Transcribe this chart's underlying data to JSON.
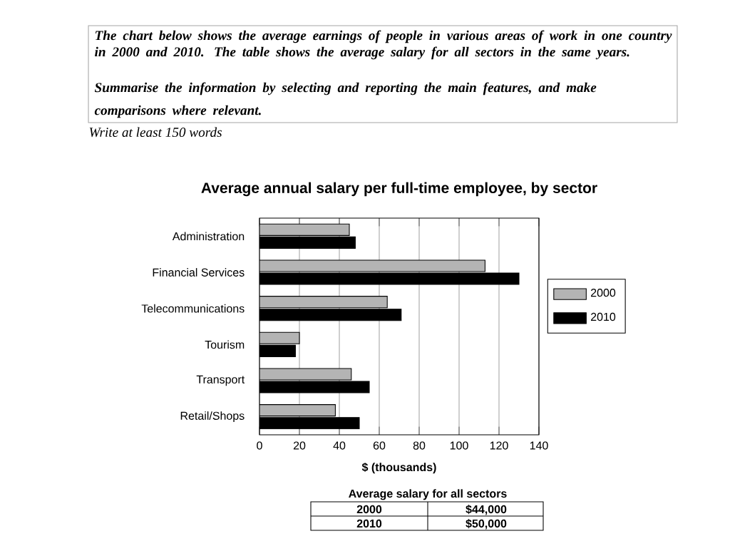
{
  "chart_data": {
    "type": "bar",
    "orientation": "horizontal",
    "title": "Average annual salary per full-time employee, by sector",
    "xlabel": "$ (thousands)",
    "categories": [
      "Administration",
      "Financial Services",
      "Telecommunications",
      "Tourism",
      "Transport",
      "Retail/Shops"
    ],
    "series": [
      {
        "name": "2000",
        "color": "#b4b4b4",
        "values": [
          45,
          113,
          64,
          20,
          46,
          38
        ]
      },
      {
        "name": "2010",
        "color": "#000000",
        "values": [
          48,
          130,
          71,
          18,
          55,
          50
        ]
      }
    ],
    "xlim": [
      0,
      140
    ],
    "xticks": [
      0,
      20,
      40,
      60,
      80,
      100,
      120,
      140
    ],
    "grid": "x",
    "legend": "right",
    "annotations": [
      "The chart below shows the average earnings of people in various areas of work in one country in 2000 and 2010. The table shows the average salary for all sectors in the same years.",
      "Summarise the information by selecting and reporting the main features, and make comparisons where relevant.",
      "Write at least 150 words",
      "Average salary for all sectors",
      "2000",
      "$44,000",
      "2010",
      "$50,000"
    ]
  }
}
